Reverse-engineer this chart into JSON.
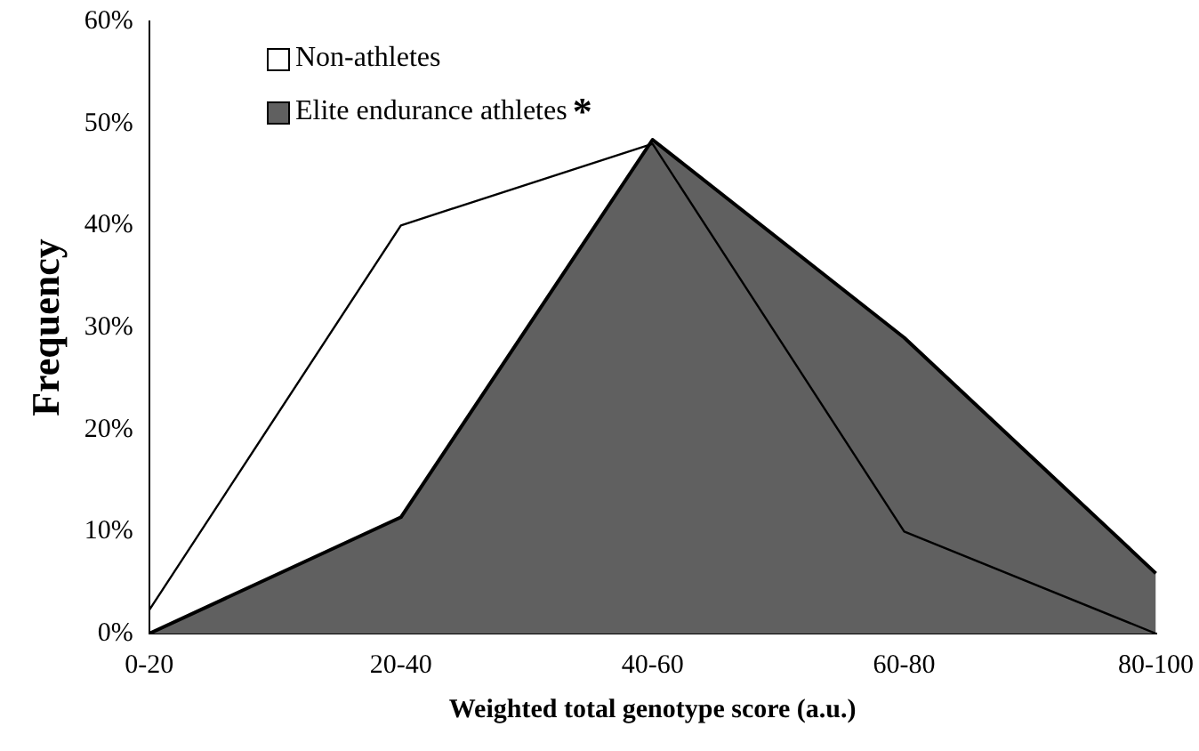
{
  "chart_data": {
    "type": "area",
    "xlabel": "Weighted total genotype score (a.u.)",
    "ylabel": "Frequency",
    "categories": [
      "0-20",
      "20-40",
      "40-60",
      "60-80",
      "80-100"
    ],
    "series": [
      {
        "name": "Non-athletes",
        "color": "#000000",
        "type": "line",
        "values": [
          2.3,
          40,
          48,
          10,
          0
        ]
      },
      {
        "name": "Elite endurance athletes",
        "color": "#606060",
        "values": [
          0,
          11.4,
          48.4,
          29,
          5.9
        ]
      }
    ],
    "ylim": [
      0,
      60
    ],
    "yticks": [
      {
        "value": 0,
        "label": "0%"
      },
      {
        "value": 10,
        "label": "10%"
      },
      {
        "value": 20,
        "label": "20%"
      },
      {
        "value": 30,
        "label": "30%"
      },
      {
        "value": 40,
        "label": "40%"
      },
      {
        "value": 50,
        "label": "50%"
      },
      {
        "value": 60,
        "label": "60%"
      }
    ],
    "grid": false,
    "legend": "top left",
    "annotations": [
      "*"
    ]
  }
}
